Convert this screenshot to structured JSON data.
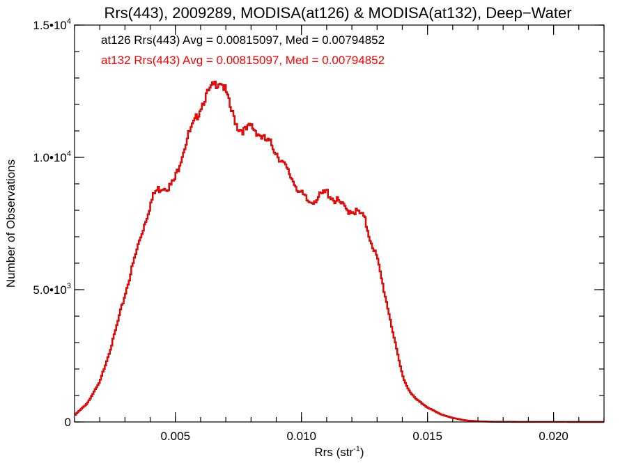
{
  "chart_data": {
    "type": "line",
    "step": true,
    "title": "Rrs(443), 2009289, MODISA(at126) & MODISA(at132), Deep−Water",
    "xlabel": "Rrs (str",
    "xlabel_sup": "-1",
    "xlabel_tail": ")",
    "ylabel": "Number of Observations",
    "xlim": [
      0.001,
      0.022
    ],
    "ylim": [
      0,
      15000
    ],
    "x_ticks": [
      {
        "value": 0.005,
        "label": "0.005"
      },
      {
        "value": 0.01,
        "label": "0.010"
      },
      {
        "value": 0.015,
        "label": "0.015"
      },
      {
        "value": 0.02,
        "label": "0.020"
      }
    ],
    "x_minor_step": 0.001,
    "y_ticks": [
      {
        "value": 0,
        "mant": "0",
        "exp": ""
      },
      {
        "value": 5000,
        "mant": "5.0•10",
        "exp": "3"
      },
      {
        "value": 10000,
        "mant": "1.0•10",
        "exp": "4"
      },
      {
        "value": 15000,
        "mant": "1.5•10",
        "exp": "4"
      }
    ],
    "y_minor_step": 1000,
    "annotations": [
      {
        "text": "at126 Rrs(443) Avg = 0.00815097, Med = 0.00794852",
        "color": "#000000"
      },
      {
        "text": "at132 Rrs(443) Avg = 0.00815097, Med = 0.00794852",
        "color": "#ff0000"
      }
    ],
    "series": [
      {
        "name": "at126",
        "color": "#000000"
      },
      {
        "name": "at132",
        "color": "#ff0000"
      }
    ],
    "x": [
      0.001,
      0.0015,
      0.002,
      0.0025,
      0.003,
      0.0035,
      0.004,
      0.0042,
      0.0045,
      0.0048,
      0.005,
      0.0052,
      0.0055,
      0.0058,
      0.006,
      0.0062,
      0.0065,
      0.0068,
      0.007,
      0.0072,
      0.0075,
      0.0078,
      0.008,
      0.0082,
      0.0085,
      0.0088,
      0.009,
      0.0095,
      0.01,
      0.0103,
      0.0107,
      0.011,
      0.0113,
      0.0115,
      0.0118,
      0.012,
      0.0123,
      0.0125,
      0.0127,
      0.013,
      0.0132,
      0.0135,
      0.0138,
      0.014,
      0.0142,
      0.0145,
      0.015,
      0.0155,
      0.016,
      0.0165,
      0.017,
      0.0175,
      0.018,
      0.0185,
      0.019,
      0.02,
      0.021,
      0.022
    ],
    "values": [
      250,
      700,
      1500,
      3000,
      4800,
      6600,
      8200,
      8700,
      8900,
      8900,
      9200,
      9900,
      10800,
      11400,
      11900,
      12300,
      12700,
      12900,
      12500,
      11800,
      11100,
      11000,
      11200,
      11000,
      10700,
      10500,
      10200,
      9400,
      8600,
      8300,
      8500,
      8700,
      8400,
      8300,
      8000,
      8000,
      7900,
      7700,
      7000,
      6200,
      5300,
      4000,
      2600,
      1800,
      1300,
      900,
      550,
      300,
      150,
      60,
      25,
      10,
      5,
      3,
      2,
      1,
      0,
      0
    ]
  }
}
